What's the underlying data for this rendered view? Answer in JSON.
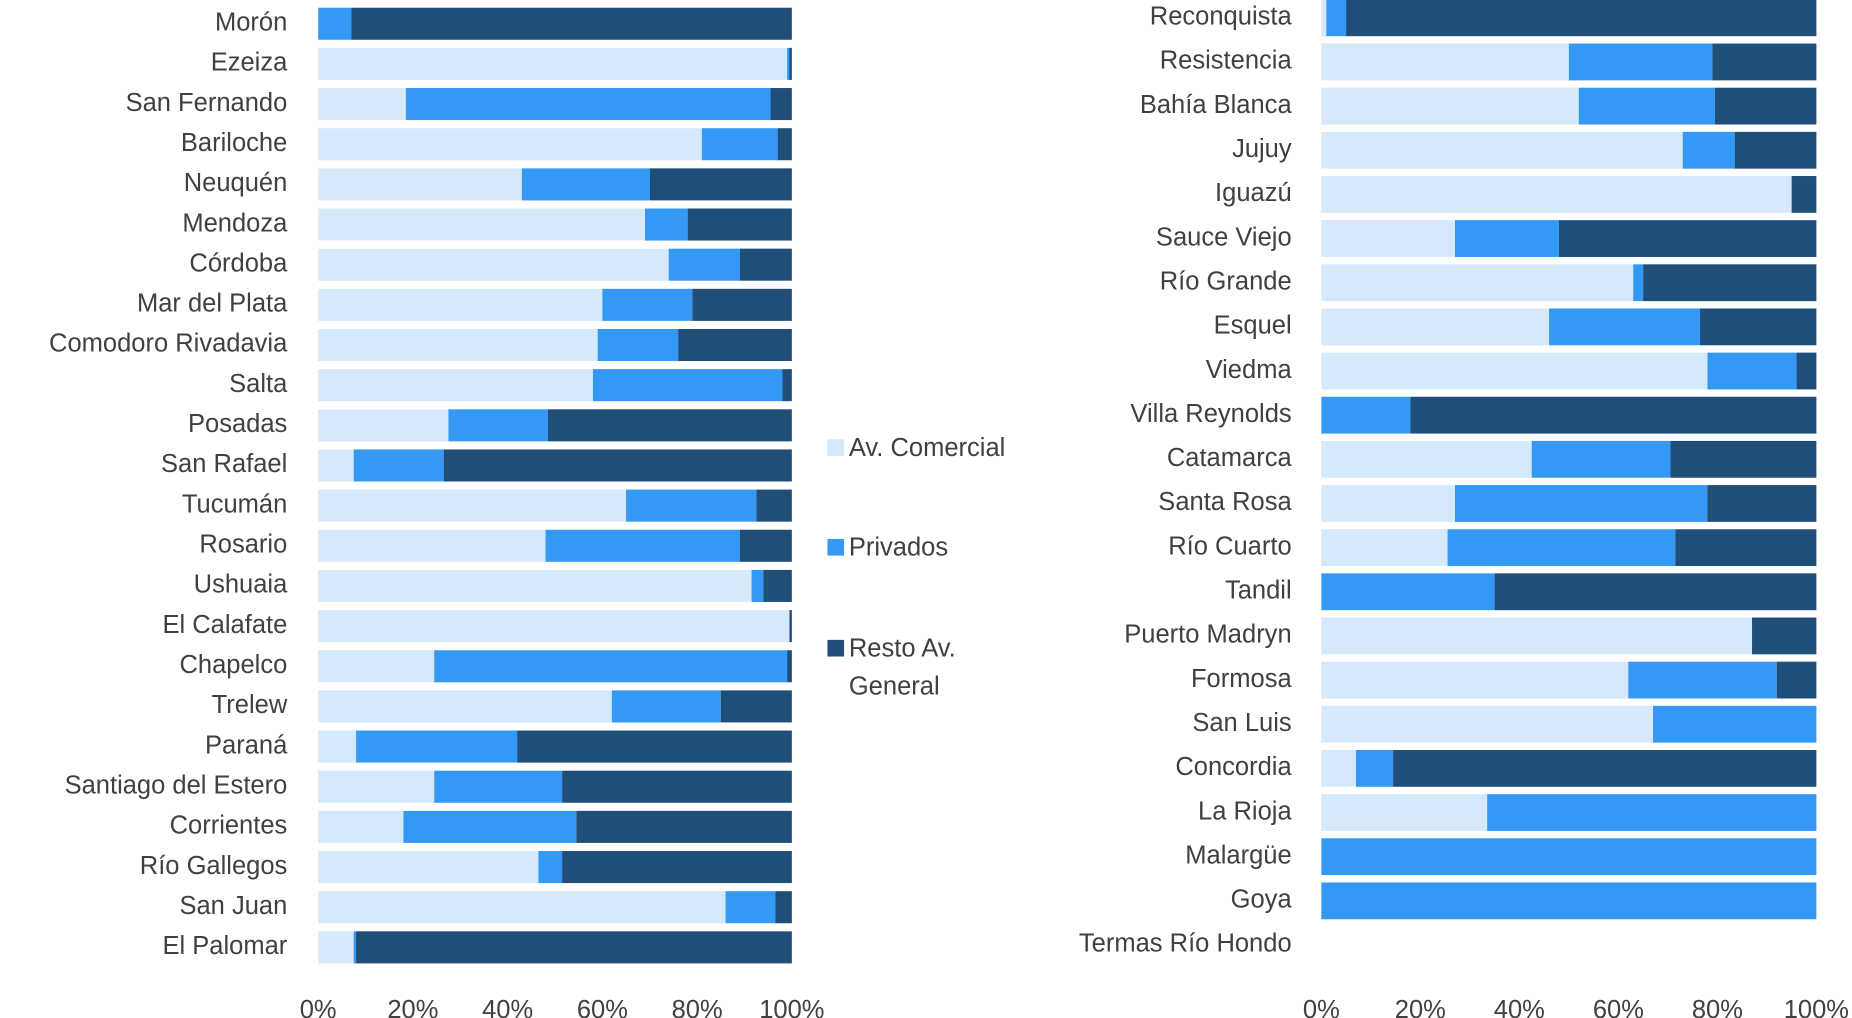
{
  "chart_data": [
    {
      "type": "bar",
      "orientation": "horizontal",
      "stacked": true,
      "categories": [
        "Morón",
        "Ezeiza",
        "San Fernando",
        "Bariloche",
        "Neuquén",
        "Mendoza",
        "Córdoba",
        "Mar del Plata",
        "Comodoro Rivadavia",
        "Salta",
        "Posadas",
        "San Rafael",
        "Tucumán",
        "Rosario",
        "Ushuaia",
        "El Calafate",
        "Chapelco",
        "Trelew",
        "Paraná",
        "Santiago del Estero",
        "Corrientes",
        "Río Gallegos",
        "San Juan",
        "El Palomar"
      ],
      "series": [
        {
          "name": "Av. Comercial",
          "color": "#d6e9fb",
          "values": [
            0,
            99,
            18.5,
            81,
            43,
            69,
            74,
            60,
            59,
            58,
            27.5,
            7.5,
            65,
            48,
            91.5,
            99.5,
            24.5,
            62,
            8,
            24.5,
            18,
            46.5,
            86,
            7.5
          ]
        },
        {
          "name": "Privados",
          "color": "#3399f5",
          "values": [
            7,
            0.5,
            77,
            16,
            27,
            9,
            15,
            19,
            17,
            40,
            21,
            19,
            27.5,
            41,
            2.5,
            0,
            74.5,
            23,
            34,
            27,
            36.5,
            5,
            10.5,
            0.5
          ]
        },
        {
          "name": "Resto Av. General",
          "color": "#1f4e79",
          "values": [
            93,
            0.5,
            4.5,
            3,
            30,
            22,
            11,
            21,
            24,
            2,
            51.5,
            73.5,
            7.5,
            11,
            6,
            0.5,
            1,
            15,
            58,
            48.5,
            45.5,
            48.5,
            3.5,
            92
          ]
        }
      ],
      "xlim": [
        0,
        100
      ],
      "xticks": [
        {
          "value": 0,
          "label": "0%"
        },
        {
          "value": 20,
          "label": "20%"
        },
        {
          "value": 40,
          "label": "40%"
        },
        {
          "value": 60,
          "label": "60%"
        },
        {
          "value": 80,
          "label": "80%"
        },
        {
          "value": 100,
          "label": "100%"
        }
      ],
      "legend": "right"
    },
    {
      "type": "bar",
      "orientation": "horizontal",
      "stacked": true,
      "categories": [
        "Reconquista",
        "Resistencia",
        "Bahía Blanca",
        "Jujuy",
        "Iguazú",
        "Sauce Viejo",
        "Río Grande",
        "Esquel",
        "Viedma",
        "Villa Reynolds",
        "Catamarca",
        "Santa Rosa",
        "Río Cuarto",
        "Tandil",
        "Puerto Madryn",
        "Formosa",
        "San Luis",
        "Concordia",
        "La Rioja",
        "Malargüe",
        "Goya",
        "Termas Río Hondo"
      ],
      "series": [
        {
          "color": "#d6e9fb",
          "values": [
            1,
            50,
            52,
            73,
            95,
            27,
            63,
            46,
            78,
            0,
            42.5,
            27,
            25.5,
            0,
            87,
            62,
            67,
            7,
            33.5,
            0,
            0,
            null
          ]
        },
        {
          "color": "#3399f5",
          "values": [
            4,
            29,
            27.5,
            10.5,
            0,
            21,
            2,
            30.5,
            18,
            18,
            28,
            51,
            46,
            35,
            0,
            30,
            33,
            7.5,
            66.5,
            100,
            100,
            null
          ]
        },
        {
          "color": "#1f4e79",
          "values": [
            95,
            21,
            20.5,
            16.5,
            5,
            52,
            35,
            23.5,
            4,
            82,
            29.5,
            22,
            28.5,
            65,
            13,
            8,
            0,
            85.5,
            0,
            0,
            0,
            null
          ]
        }
      ],
      "xlim": [
        0,
        100
      ],
      "xticks": [
        {
          "value": 0,
          "label": "0%"
        },
        {
          "value": 20,
          "label": "20%"
        },
        {
          "value": 40,
          "label": "40%"
        },
        {
          "value": 60,
          "label": "60%"
        },
        {
          "value": 80,
          "label": "80%"
        },
        {
          "value": 100,
          "label": "100%"
        }
      ]
    }
  ]
}
